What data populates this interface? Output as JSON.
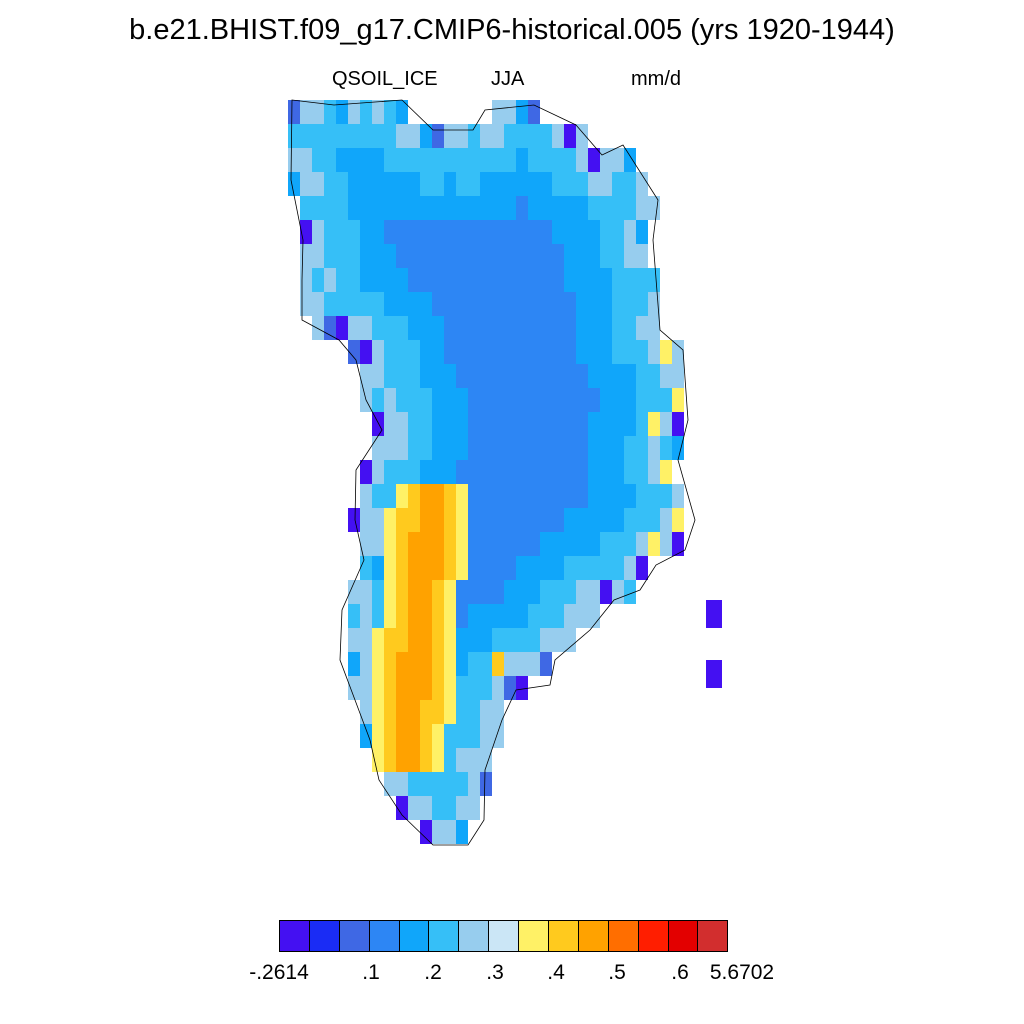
{
  "title": "b.e21.BHIST.f09_g17.CMIP6-historical.005 (yrs 1920-1944)",
  "variable": "QSOIL_ICE",
  "season": "JJA",
  "units": "mm/d",
  "colorbar": {
    "colors": [
      "#4410f2",
      "#1a2cf5",
      "#3f68e4",
      "#2d86f4",
      "#10a6fa",
      "#36bff7",
      "#97cdee",
      "#cbe6f6",
      "#fff166",
      "#ffca1e",
      "#ffa200",
      "#ff6e00",
      "#ff1e00",
      "#e30000",
      "#d22e2e"
    ],
    "labels": [
      "-.2614",
      ".1",
      ".2",
      ".3",
      ".4",
      ".5",
      ".6",
      "5.6702"
    ]
  }
}
